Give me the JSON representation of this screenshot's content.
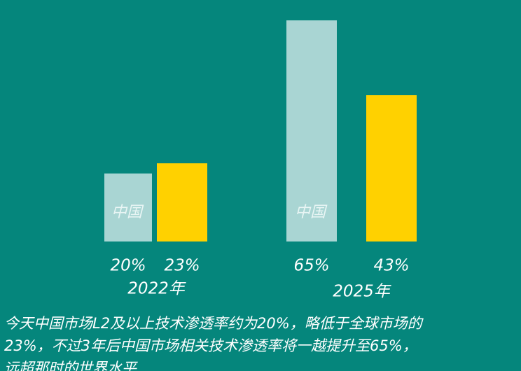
{
  "chart_data": {
    "type": "bar",
    "categories": [
      "2022年",
      "2025年"
    ],
    "series": [
      {
        "name": "中国",
        "color": "#a9d5d3",
        "values": [
          20,
          65
        ],
        "value_labels": [
          "20%",
          "65%"
        ]
      },
      {
        "color": "#ffd100",
        "values": [
          23,
          43
        ],
        "value_labels": [
          "23%",
          "43%"
        ]
      }
    ],
    "background": "#05867c",
    "caption": [
      "今天中国市场L2及以上技术渗透率约为20%，略低于全球市场的",
      "23%，不过3年后中国市场相关技术渗透率将一越提升至65%，",
      "远超那时的世界水平"
    ]
  }
}
